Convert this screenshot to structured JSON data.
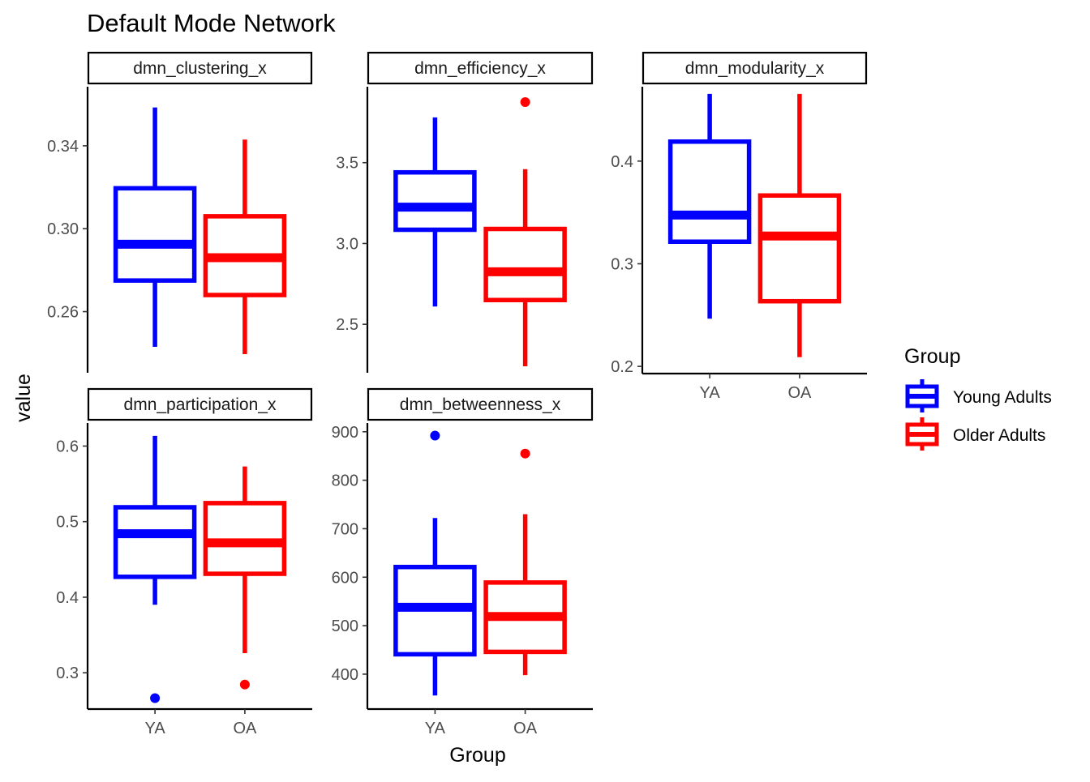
{
  "chart_data": {
    "type": "box",
    "title": "Default Mode Network",
    "xlabel": "Group",
    "ylabel": "value",
    "legend": {
      "title": "Group",
      "position": "right",
      "entries": [
        {
          "label": "Young Adults",
          "color": "#0000FF"
        },
        {
          "label": "Older Adults",
          "color": "#FF0000"
        }
      ]
    },
    "categories": [
      "YA",
      "OA"
    ],
    "colors": {
      "YA": "#0000FF",
      "OA": "#FF0000"
    },
    "panels": [
      {
        "name": "dmn_clustering_x",
        "ylim": [
          0.2305,
          0.3685
        ],
        "yticks": [
          0.26,
          0.3,
          0.34
        ],
        "ytick_labels": [
          "0.26",
          "0.30",
          "0.34"
        ],
        "show_x_axis": false,
        "boxes": [
          {
            "group": "YA",
            "low": 0.243,
            "q1": 0.275,
            "median": 0.2925,
            "q3": 0.3195,
            "high": 0.3585,
            "outliers": []
          },
          {
            "group": "OA",
            "low": 0.2395,
            "q1": 0.268,
            "median": 0.286,
            "q3": 0.306,
            "high": 0.343,
            "outliers": []
          }
        ]
      },
      {
        "name": "dmn_efficiency_x",
        "ylim": [
          2.2,
          3.97
        ],
        "yticks": [
          2.5,
          3.0,
          3.5
        ],
        "ytick_labels": [
          "2.5",
          "3.0",
          "3.5"
        ],
        "show_x_axis": false,
        "boxes": [
          {
            "group": "YA",
            "low": 2.61,
            "q1": 3.085,
            "median": 3.225,
            "q3": 3.44,
            "high": 3.78,
            "outliers": []
          },
          {
            "group": "OA",
            "low": 2.24,
            "q1": 2.65,
            "median": 2.825,
            "q3": 3.09,
            "high": 3.46,
            "outliers": [
              3.875
            ]
          }
        ]
      },
      {
        "name": "dmn_modularity_x",
        "ylim": [
          0.193,
          0.4725
        ],
        "yticks": [
          0.2,
          0.3,
          0.4
        ],
        "ytick_labels": [
          "0.2",
          "0.3",
          "0.4"
        ],
        "show_x_axis": true,
        "boxes": [
          {
            "group": "YA",
            "low": 0.2465,
            "q1": 0.3215,
            "median": 0.3475,
            "q3": 0.419,
            "high": 0.4655,
            "outliers": []
          },
          {
            "group": "OA",
            "low": 0.209,
            "q1": 0.2635,
            "median": 0.327,
            "q3": 0.3665,
            "high": 0.4655,
            "outliers": []
          }
        ]
      },
      {
        "name": "dmn_participation_x",
        "ylim": [
          0.252,
          0.6305
        ],
        "yticks": [
          0.3,
          0.4,
          0.5,
          0.6
        ],
        "ytick_labels": [
          "0.3",
          "0.4",
          "0.5",
          "0.6"
        ],
        "show_x_axis": true,
        "boxes": [
          {
            "group": "YA",
            "low": 0.39,
            "q1": 0.427,
            "median": 0.484,
            "q3": 0.519,
            "high": 0.6135,
            "outliers": [
              0.2665
            ]
          },
          {
            "group": "OA",
            "low": 0.326,
            "q1": 0.431,
            "median": 0.472,
            "q3": 0.5245,
            "high": 0.573,
            "outliers": [
              0.2845
            ]
          }
        ]
      },
      {
        "name": "dmn_betweenness_x",
        "ylim": [
          328,
          918
        ],
        "yticks": [
          400,
          500,
          600,
          700,
          800,
          900
        ],
        "ytick_labels": [
          "400",
          "500",
          "600",
          "700",
          "800",
          "900"
        ],
        "show_x_axis": true,
        "boxes": [
          {
            "group": "YA",
            "low": 356,
            "q1": 441,
            "median": 538,
            "q3": 621,
            "high": 722,
            "outliers": [
              892
            ]
          },
          {
            "group": "OA",
            "low": 398,
            "q1": 446,
            "median": 519,
            "q3": 589,
            "high": 730,
            "outliers": [
              855
            ]
          }
        ]
      }
    ]
  }
}
